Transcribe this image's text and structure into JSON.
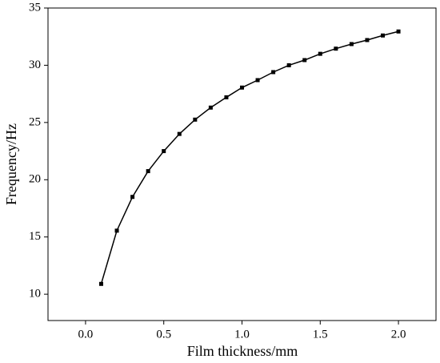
{
  "chart_data": {
    "type": "line",
    "x_label": "Film thickness/mm",
    "y_label": "Frequency/Hz",
    "x": [
      0.1,
      0.2,
      0.3,
      0.4,
      0.5,
      0.6,
      0.7,
      0.8,
      0.9,
      1.0,
      1.1,
      1.2,
      1.3,
      1.4,
      1.5,
      1.6,
      1.7,
      1.8,
      1.9,
      2.0
    ],
    "series": [
      {
        "color": "#000000",
        "marker": "square",
        "values": [
          10.9,
          15.55,
          18.5,
          20.75,
          22.5,
          24.0,
          25.25,
          26.3,
          27.2,
          28.05,
          28.7,
          29.4,
          30.0,
          30.45,
          31.0,
          31.45,
          31.85,
          32.2,
          32.6,
          32.95
        ]
      }
    ],
    "xlim": [
      -0.24,
      2.24
    ],
    "ylim": [
      7.7,
      35
    ],
    "xticks": [
      {
        "value": 0,
        "label": "0.0"
      },
      0.5,
      {
        "value": 1,
        "label": "1.0"
      },
      1.5,
      {
        "value": 2,
        "label": "2.0"
      }
    ],
    "yticks": [
      10,
      15,
      20,
      25,
      30,
      35
    ],
    "grid": false
  }
}
